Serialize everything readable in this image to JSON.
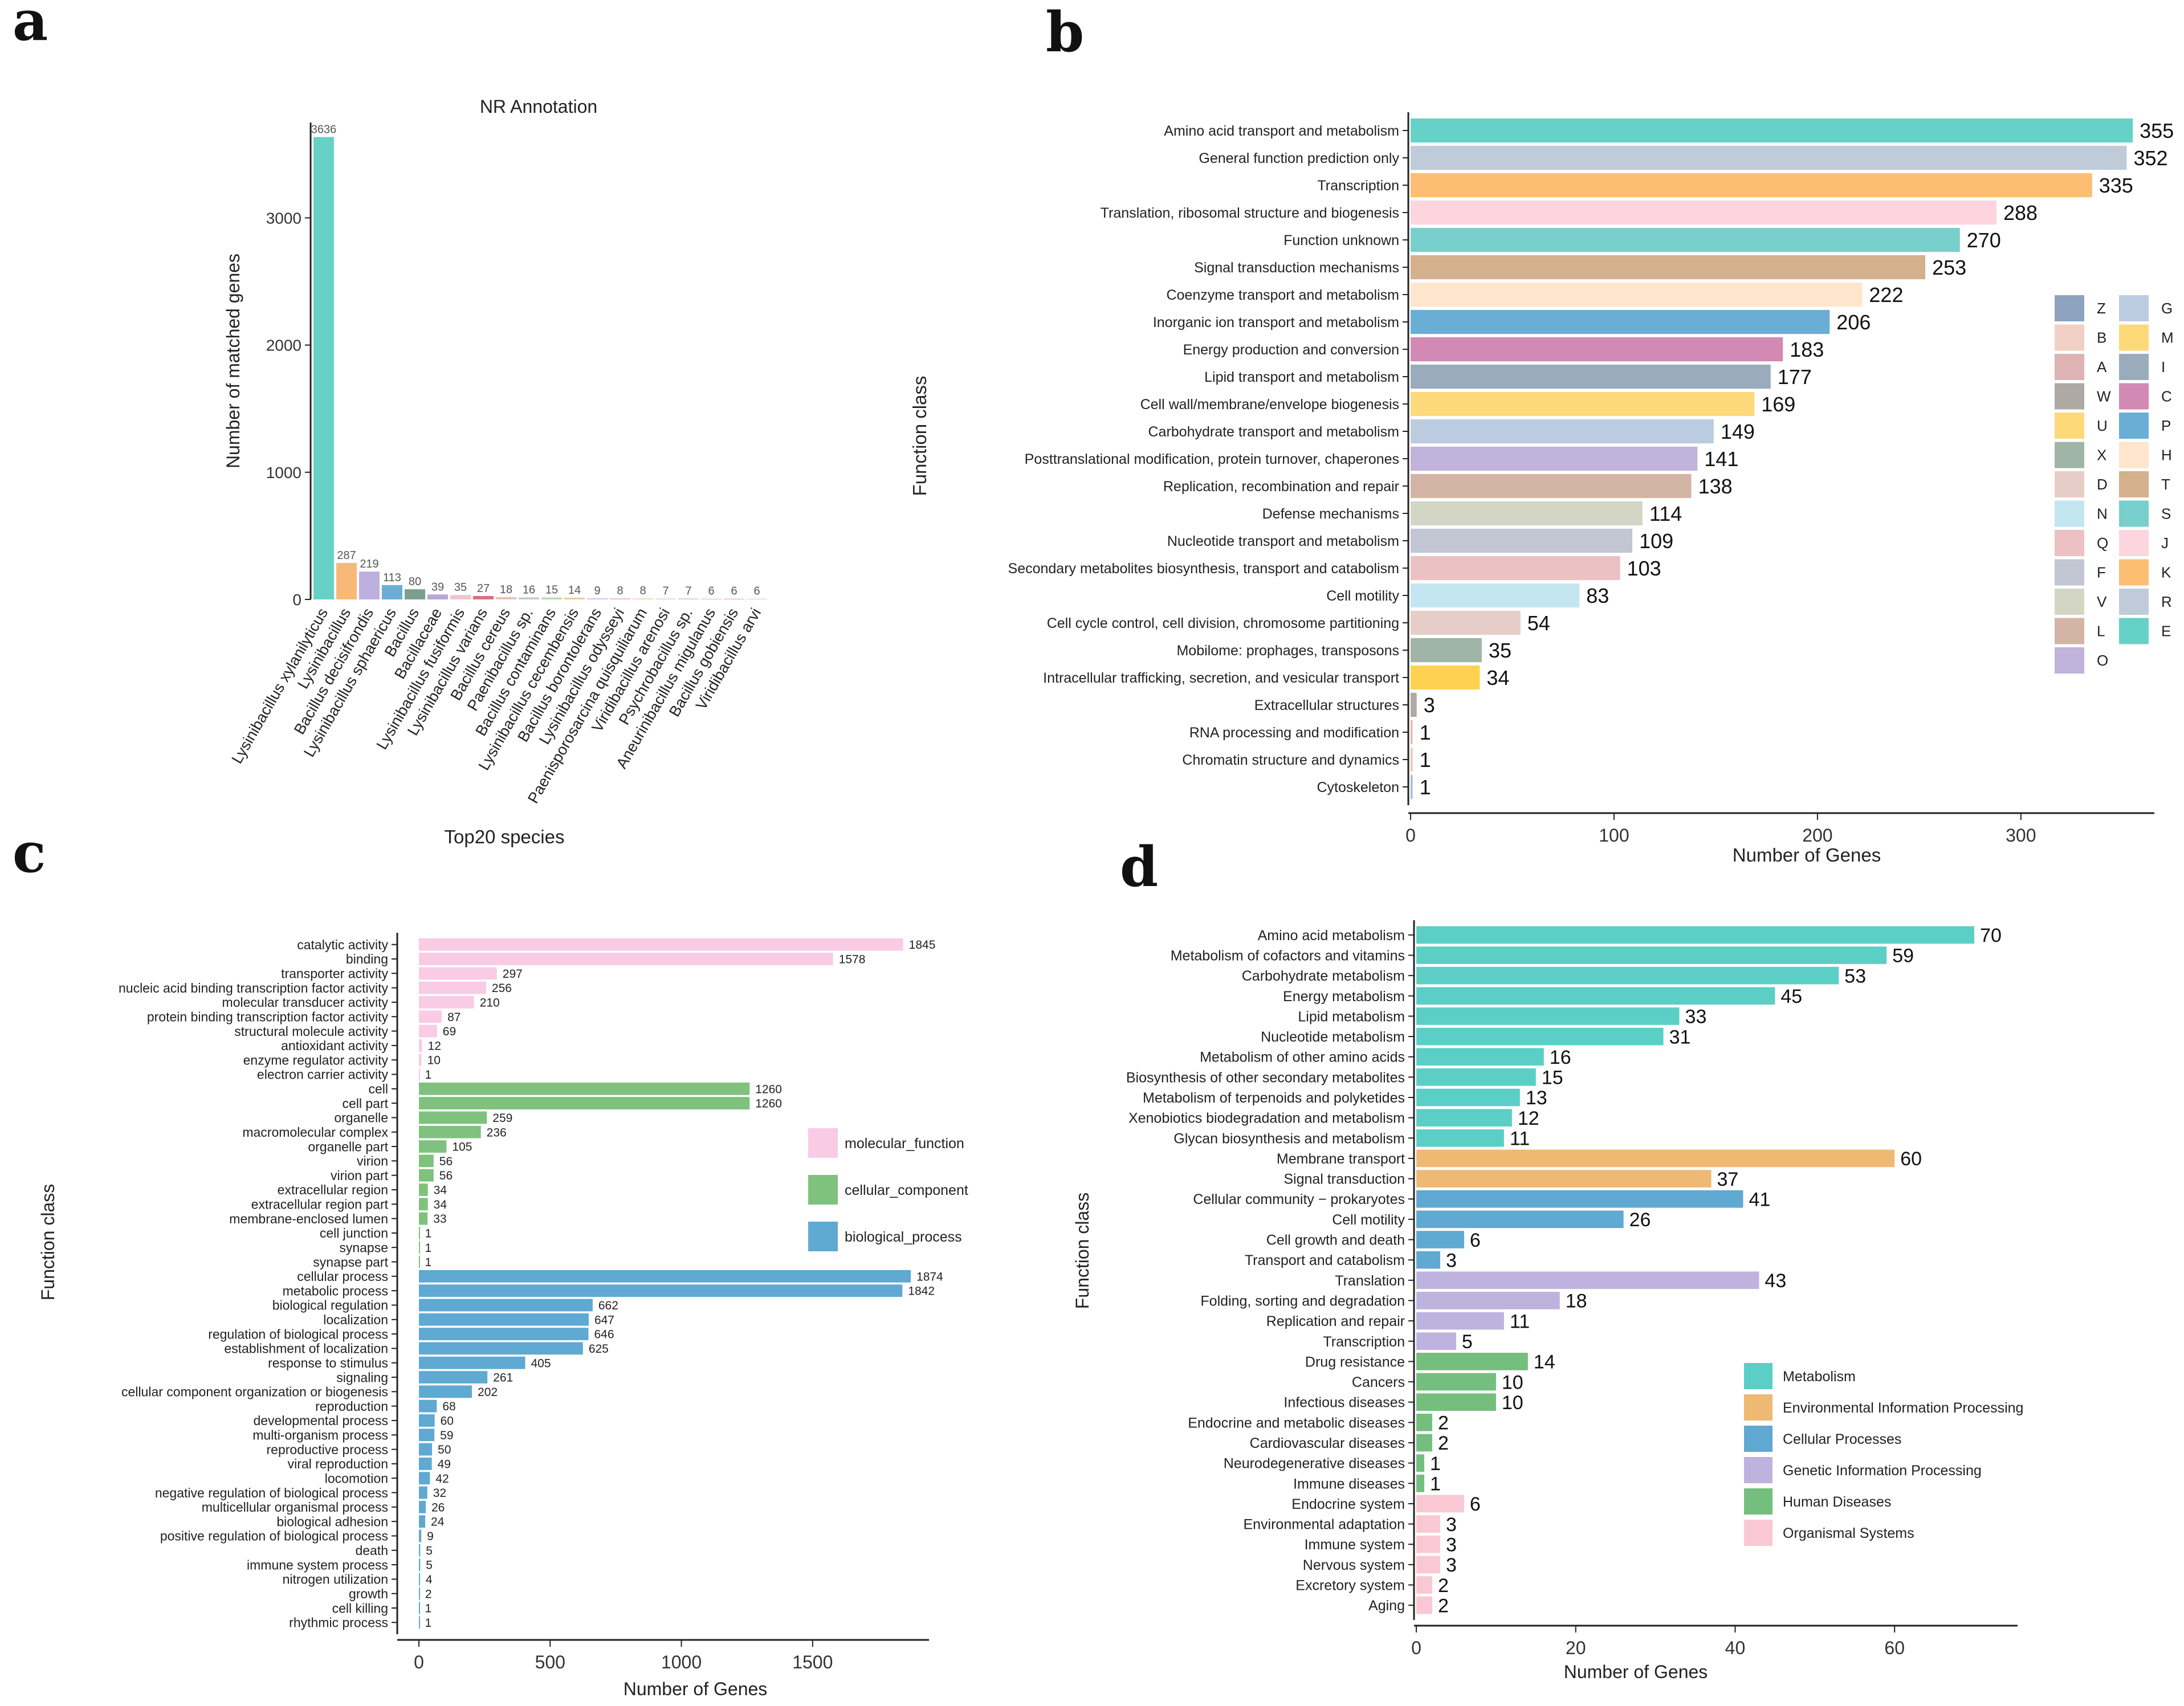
{
  "panel_labels": {
    "a": "a",
    "b": "b",
    "c": "c",
    "d": "d"
  },
  "chart_data": [
    {
      "id": "a",
      "type": "bar",
      "title": "NR Annotation",
      "xlabel": "Top20 species",
      "ylabel": "Number of matched genes",
      "ylim": [
        0,
        3750
      ],
      "yticks": [
        0,
        1000,
        2000,
        3000
      ],
      "categories": [
        "Lysinibacillus xylanilyticus",
        "Lysinibacillus",
        "Bacillus decisifrondis",
        "Lysinibacillus sphaericus",
        "Bacillus",
        "Bacillaceae",
        "Lysinibacillus fusiformis",
        "Lysinibacillus varians",
        "Bacillus cereus",
        "Paenibacillus sp.",
        "Bacillus contaminans",
        "Lysinibacillus cecembensis",
        "Bacillus borontolerans",
        "Lysinibacillus odysseyi",
        "Paenisporosarcina quisquiliarum",
        "Viridibacillus arenosi",
        "Psychrobacillus sp.",
        "Aneurinibacillus migulanus",
        "Bacillus gobiensis",
        "Viridibacillus arvi"
      ],
      "values": [
        3636,
        287,
        219,
        113,
        80,
        39,
        35,
        27,
        18,
        16,
        15,
        14,
        9,
        8,
        8,
        7,
        7,
        6,
        6,
        6
      ],
      "colors": [
        "#66D2C7",
        "#F8B878",
        "#BDB0DE",
        "#6AAED6",
        "#7A9E8F",
        "#B8A5D8",
        "#F4C3CD",
        "#D96F7E",
        "#E8C3B0",
        "#C8C8C8",
        "#B8D8B8",
        "#F0C8A0",
        "#C8C8E8",
        "#E8B8C8",
        "#F0D8A8",
        "#C8D8E8",
        "#D8C8B8",
        "#E8C8D8",
        "#F0B8B8",
        "#D8E0C8"
      ]
    },
    {
      "id": "b",
      "type": "bar",
      "orientation": "horizontal",
      "xlabel": "Number  of Genes",
      "ylabel": "Function class",
      "xlim": [
        0,
        360
      ],
      "xticks": [
        0,
        100,
        200,
        300
      ],
      "categories": [
        "Amino acid transport and metabolism",
        "General function prediction only",
        "Transcription",
        "Translation, ribosomal structure and biogenesis",
        "Function unknown",
        "Signal transduction mechanisms",
        "Coenzyme transport and metabolism",
        "Inorganic ion transport and metabolism",
        "Energy production and conversion",
        "Lipid transport and metabolism",
        "Cell wall/membrane/envelope biogenesis",
        "Carbohydrate transport and metabolism",
        "Posttranslational modification, protein turnover, chaperones",
        "Replication, recombination and repair",
        "Defense mechanisms",
        "Nucleotide transport and metabolism",
        "Secondary metabolites biosynthesis, transport and catabolism",
        "Cell motility",
        "Cell cycle control, cell division, chromosome partitioning",
        "Mobilome: prophages, transposons",
        "Intracellular trafficking, secretion, and vesicular transport",
        "Extracellular structures",
        "RNA processing and modification",
        "Chromatin structure and dynamics",
        "Cytoskeleton"
      ],
      "values": [
        355,
        352,
        335,
        288,
        270,
        253,
        222,
        206,
        183,
        177,
        169,
        149,
        141,
        138,
        114,
        109,
        103,
        83,
        54,
        35,
        34,
        3,
        1,
        1,
        1
      ],
      "colors": [
        "#66D2C7",
        "#BFCBD9",
        "#FDBE73",
        "#FDD5DE",
        "#78CFCB",
        "#D4B08C",
        "#FDE6CC",
        "#6AAED6",
        "#D289B3",
        "#9AABBB",
        "#FED979",
        "#BCCCE0",
        "#C1B3DC",
        "#D4B4A4",
        "#D4D6C5",
        "#C2C6D3",
        "#EBC1C4",
        "#C3E6F0",
        "#E7CDC8",
        "#A1B5A6",
        "#FED151",
        "#AFA9A6",
        "#F0B8B8",
        "#E8C8B8",
        "#A8BCDC"
      ],
      "legend": {
        "position": "right",
        "col1": [
          {
            "key": "Z",
            "color": "#8DA3BF"
          },
          {
            "key": "B",
            "color": "#F0D0C4"
          },
          {
            "key": "A",
            "color": "#DDB3B3"
          },
          {
            "key": "W",
            "color": "#AFA9A6"
          },
          {
            "key": "U",
            "color": "#FED979"
          },
          {
            "key": "X",
            "color": "#A1B5A6"
          },
          {
            "key": "D",
            "color": "#E7CDC8"
          },
          {
            "key": "N",
            "color": "#C3E6F0"
          },
          {
            "key": "Q",
            "color": "#EBC1C4"
          },
          {
            "key": "F",
            "color": "#C2C6D3"
          },
          {
            "key": "V",
            "color": "#D4D6C5"
          },
          {
            "key": "L",
            "color": "#D4B4A4"
          },
          {
            "key": "O",
            "color": "#C1B3DC"
          }
        ],
        "col2": [
          {
            "key": "G",
            "color": "#BCCCE0"
          },
          {
            "key": "M",
            "color": "#FED979"
          },
          {
            "key": "I",
            "color": "#9AABBB"
          },
          {
            "key": "C",
            "color": "#D289B3"
          },
          {
            "key": "P",
            "color": "#6AAED6"
          },
          {
            "key": "H",
            "color": "#FDE6CC"
          },
          {
            "key": "T",
            "color": "#D4B08C"
          },
          {
            "key": "S",
            "color": "#78CFCB"
          },
          {
            "key": "J",
            "color": "#FDD5DE"
          },
          {
            "key": "K",
            "color": "#FDBE73"
          },
          {
            "key": "R",
            "color": "#BFCBD9"
          },
          {
            "key": "E",
            "color": "#66D2C7"
          }
        ]
      }
    },
    {
      "id": "c",
      "type": "bar",
      "orientation": "horizontal",
      "xlabel": "Number of Genes",
      "ylabel": "Function class",
      "xlim": [
        0,
        1900
      ],
      "xticks": [
        0,
        500,
        1000,
        1500
      ],
      "categories": [
        "catalytic activity",
        "binding",
        "transporter activity",
        "nucleic acid binding transcription factor activity",
        "molecular transducer activity",
        "protein binding transcription factor activity",
        "structural molecule activity",
        "antioxidant activity",
        "enzyme regulator activity",
        "electron carrier activity",
        "cell",
        "cell part",
        "organelle",
        "macromolecular complex",
        "organelle part",
        "virion",
        "virion part",
        "extracellular region",
        "extracellular region part",
        "membrane-enclosed lumen",
        "cell junction",
        "synapse",
        "synapse part",
        "cellular process",
        "metabolic process",
        "biological regulation",
        "localization",
        "regulation of biological process",
        "establishment of localization",
        "response to stimulus",
        "signaling",
        "cellular component organization or biogenesis",
        "reproduction",
        "developmental process",
        "multi-organism process",
        "reproductive process",
        "viral reproduction",
        "locomotion",
        "negative regulation of biological process",
        "multicellular organismal process",
        "biological adhesion",
        "positive regulation of biological process",
        "death",
        "immune system process",
        "nitrogen utilization",
        "growth",
        "cell killing",
        "rhythmic process"
      ],
      "values": [
        1845,
        1578,
        297,
        256,
        210,
        87,
        69,
        12,
        10,
        1,
        1260,
        1260,
        259,
        236,
        105,
        56,
        56,
        34,
        34,
        33,
        1,
        1,
        1,
        1874,
        1842,
        662,
        647,
        646,
        625,
        405,
        261,
        202,
        68,
        60,
        59,
        50,
        49,
        42,
        32,
        26,
        24,
        9,
        5,
        5,
        4,
        2,
        1,
        1
      ],
      "groups": [
        "molecular_function",
        "molecular_function",
        "molecular_function",
        "molecular_function",
        "molecular_function",
        "molecular_function",
        "molecular_function",
        "molecular_function",
        "molecular_function",
        "molecular_function",
        "cellular_component",
        "cellular_component",
        "cellular_component",
        "cellular_component",
        "cellular_component",
        "cellular_component",
        "cellular_component",
        "cellular_component",
        "cellular_component",
        "cellular_component",
        "cellular_component",
        "cellular_component",
        "cellular_component",
        "biological_process",
        "biological_process",
        "biological_process",
        "biological_process",
        "biological_process",
        "biological_process",
        "biological_process",
        "biological_process",
        "biological_process",
        "biological_process",
        "biological_process",
        "biological_process",
        "biological_process",
        "biological_process",
        "biological_process",
        "biological_process",
        "biological_process",
        "biological_process",
        "biological_process",
        "biological_process",
        "biological_process",
        "biological_process",
        "biological_process",
        "biological_process",
        "biological_process"
      ],
      "legend": {
        "position": "right",
        "items": [
          {
            "name": "molecular_function",
            "color": "#F9CBE4"
          },
          {
            "name": "cellular_component",
            "color": "#7EC27E"
          },
          {
            "name": "biological_process",
            "color": "#5FA9D3"
          }
        ]
      }
    },
    {
      "id": "d",
      "type": "bar",
      "orientation": "horizontal",
      "xlabel": "Number of Genes",
      "ylabel": "Function class",
      "xlim": [
        0,
        74
      ],
      "xticks": [
        0,
        20,
        40,
        60
      ],
      "categories": [
        "Amino acid metabolism",
        "Metabolism of cofactors and vitamins",
        "Carbohydrate metabolism",
        "Energy metabolism",
        "Lipid metabolism",
        "Nucleotide metabolism",
        "Metabolism of other amino acids",
        "Biosynthesis of other secondary metabolites",
        "Metabolism of terpenoids and polyketides",
        "Xenobiotics biodegradation and metabolism",
        "Glycan biosynthesis and metabolism",
        "Membrane transport",
        "Signal transduction",
        "Cellular community − prokaryotes",
        "Cell motility",
        "Cell growth and death",
        "Transport and catabolism",
        "Translation",
        "Folding, sorting and degradation",
        "Replication and repair",
        "Transcription",
        "Drug resistance",
        "Cancers",
        "Infectious diseases",
        "Endocrine and metabolic diseases",
        "Cardiovascular diseases",
        "Neurodegenerative diseases",
        "Immune diseases",
        "Endocrine system",
        "Environmental adaptation",
        "Immune system",
        "Nervous system",
        "Excretory system",
        "Aging"
      ],
      "values": [
        70,
        59,
        53,
        45,
        33,
        31,
        16,
        15,
        13,
        12,
        11,
        60,
        37,
        41,
        26,
        6,
        3,
        43,
        18,
        11,
        5,
        14,
        10,
        10,
        2,
        2,
        1,
        1,
        6,
        3,
        3,
        3,
        2,
        2
      ],
      "groups": [
        "Metabolism",
        "Metabolism",
        "Metabolism",
        "Metabolism",
        "Metabolism",
        "Metabolism",
        "Metabolism",
        "Metabolism",
        "Metabolism",
        "Metabolism",
        "Metabolism",
        "Environmental Information Processing",
        "Environmental Information Processing",
        "Cellular Processes",
        "Cellular Processes",
        "Cellular Processes",
        "Cellular Processes",
        "Genetic Information Processing",
        "Genetic Information Processing",
        "Genetic Information Processing",
        "Genetic Information Processing",
        "Human Diseases",
        "Human Diseases",
        "Human Diseases",
        "Human Diseases",
        "Human Diseases",
        "Human Diseases",
        "Human Diseases",
        "Organismal Systems",
        "Organismal Systems",
        "Organismal Systems",
        "Organismal Systems",
        "Organismal Systems",
        "Organismal Systems"
      ],
      "legend": {
        "position": "right",
        "items": [
          {
            "name": "Metabolism",
            "color": "#5BCFC6"
          },
          {
            "name": "Environmental Information Processing",
            "color": "#EDB973"
          },
          {
            "name": "Cellular Processes",
            "color": "#5FA9D3"
          },
          {
            "name": "Genetic Information Processing",
            "color": "#BEB3DE"
          },
          {
            "name": "Human Diseases",
            "color": "#74BE7E"
          },
          {
            "name": "Organismal Systems",
            "color": "#F9C8D4"
          }
        ]
      }
    }
  ]
}
